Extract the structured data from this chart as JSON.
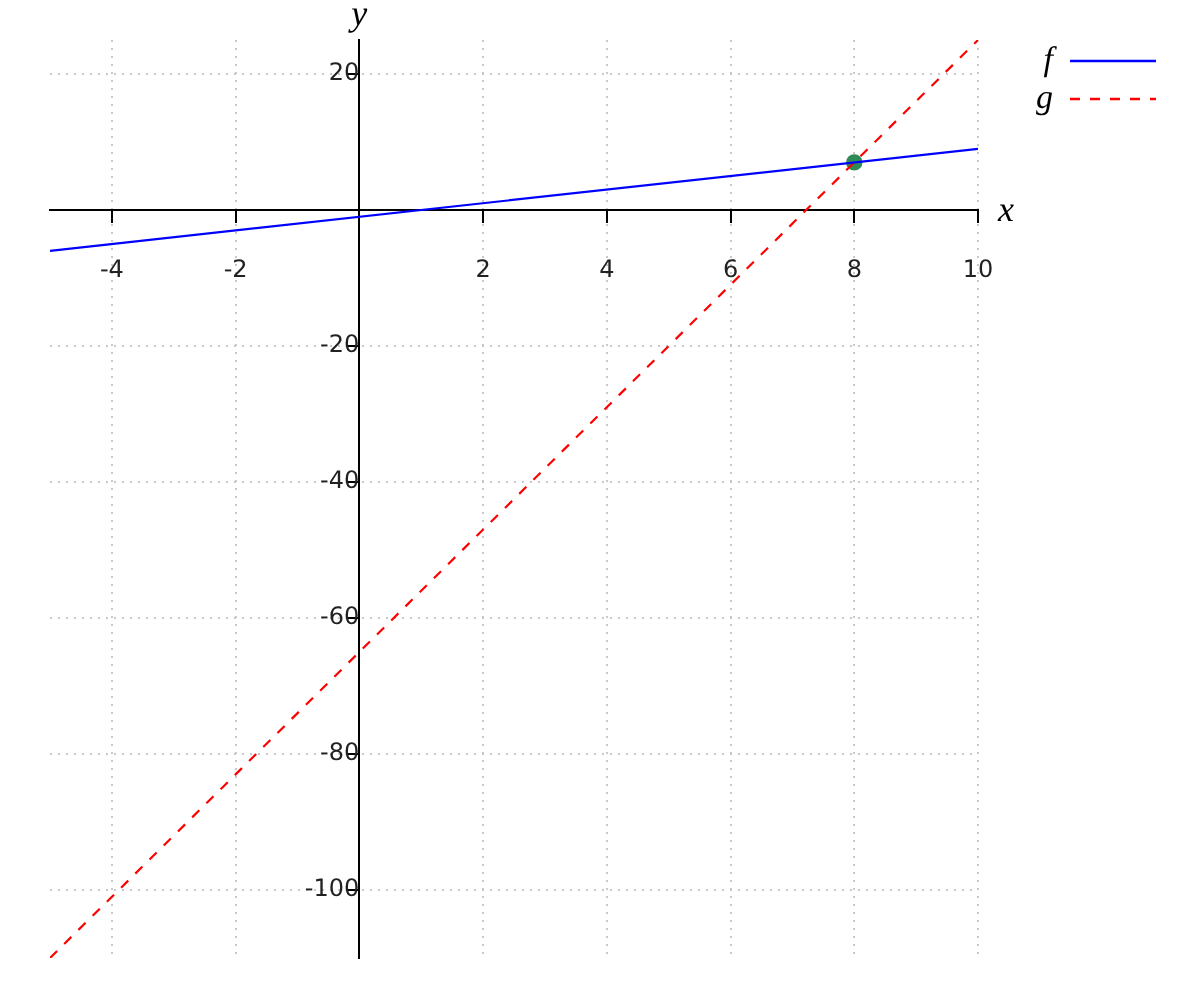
{
  "chart_data": {
    "type": "line",
    "xlabel": "x",
    "ylabel": "y",
    "xlim": [
      -5,
      10
    ],
    "ylim": [
      -110,
      25
    ],
    "xticks": [
      -4,
      -2,
      2,
      4,
      6,
      8,
      10
    ],
    "yticks": [
      20,
      -20,
      -40,
      -60,
      -80,
      -100
    ],
    "grid": true,
    "legend": "top right",
    "series": [
      {
        "name": "f",
        "color": "#0000ff",
        "line_style": "solid",
        "x": [
          -5,
          10
        ],
        "values": [
          -6,
          9
        ]
      },
      {
        "name": "g",
        "color": "#ff0000",
        "line_style": "dashed",
        "x": [
          -5,
          10
        ],
        "values": [
          -110,
          25
        ]
      },
      {
        "type": "scatter",
        "marker": "circle",
        "color": "#2e8b57",
        "x": [
          8
        ],
        "values": [
          7
        ]
      }
    ]
  }
}
